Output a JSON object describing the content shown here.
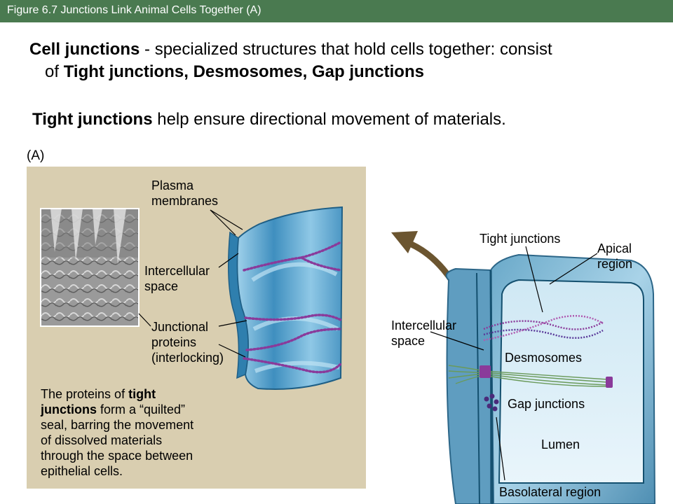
{
  "title_bar": {
    "text": "Figure 6.7  Junctions Link Animal Cells Together (A)"
  },
  "intro": {
    "term": "Cell junctions",
    "text_a": " - specialized structures that hold cells together: consist",
    "text_b": "of ",
    "types": "Tight junctions, Desmosomes, Gap junctions"
  },
  "tight": {
    "term": "Tight junctions",
    "text": " help ensure directional movement of materials."
  },
  "panel_a": {
    "label": "(A)",
    "labels": {
      "plasma_1": "Plasma",
      "plasma_2": "membranes",
      "intercell_1": "Intercellular",
      "intercell_2": "space",
      "junc_1": "Junctional",
      "junc_2": "proteins",
      "junc_3": "(interlocking)"
    },
    "caption": {
      "p1": "The proteins of ",
      "b1": "tight",
      "b2": "junctions",
      "p2": " form a “quilted”",
      "p3": "seal, barring the movement",
      "p4": "of dissolved materials",
      "p5": "through the space between",
      "p6": "epithelial cells."
    },
    "colors": {
      "background": "#d9ceb0",
      "membrane": "#5aa6cf",
      "protein": "#8a3a9a"
    }
  },
  "cell_diagram": {
    "labels": {
      "tight": "Tight junctions",
      "apical_1": "Apical",
      "apical_2": "region",
      "intercell_1": "Intercellular",
      "intercell_2": "space",
      "desmosomes": "Desmosomes",
      "gap": "Gap junctions",
      "lumen": "Lumen",
      "basolateral": "Basolateral region"
    },
    "colors": {
      "cell": "#6fb0cf",
      "arrow": "#6b5530",
      "desmosome_fibers": "#6a9a5a"
    }
  }
}
